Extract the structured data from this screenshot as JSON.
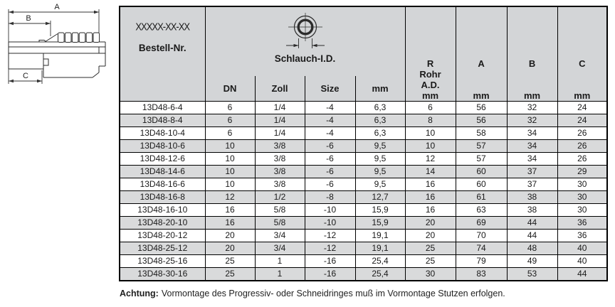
{
  "drawing": {
    "dim_a": "A",
    "dim_b": "B",
    "dim_c": "C"
  },
  "table": {
    "part_code_placeholder": "XXXXX-XX-XX",
    "col_order": "Bestell-Nr.",
    "col_hose_group": "Schlauch-I.D.",
    "sub_cols": {
      "dn": "DN",
      "zoll": "Zoll",
      "size": "Size",
      "mm": "mm"
    },
    "col_r": {
      "l1": "R",
      "l2": "Rohr",
      "l3": "A.D.",
      "unit": "mm"
    },
    "col_a": {
      "label": "A",
      "unit": "mm"
    },
    "col_b": {
      "label": "B",
      "unit": "mm"
    },
    "col_c": {
      "label": "C",
      "unit": "mm"
    },
    "rows": [
      [
        "13D48-6-4",
        "6",
        "1/4",
        "-4",
        "6,3",
        "6",
        "56",
        "32",
        "24"
      ],
      [
        "13D48-8-4",
        "6",
        "1/4",
        "-4",
        "6,3",
        "8",
        "56",
        "32",
        "24"
      ],
      [
        "13D48-10-4",
        "6",
        "1/4",
        "-4",
        "6,3",
        "10",
        "58",
        "34",
        "26"
      ],
      [
        "13D48-10-6",
        "10",
        "3/8",
        "-6",
        "9,5",
        "10",
        "57",
        "34",
        "26"
      ],
      [
        "13D48-12-6",
        "10",
        "3/8",
        "-6",
        "9,5",
        "12",
        "57",
        "34",
        "26"
      ],
      [
        "13D48-14-6",
        "10",
        "3/8",
        "-6",
        "9,5",
        "14",
        "60",
        "37",
        "29"
      ],
      [
        "13D48-16-6",
        "10",
        "3/8",
        "-6",
        "9,5",
        "16",
        "60",
        "37",
        "30"
      ],
      [
        "13D48-16-8",
        "12",
        "1/2",
        "-8",
        "12,7",
        "16",
        "61",
        "38",
        "30"
      ],
      [
        "13D48-16-10",
        "16",
        "5/8",
        "-10",
        "15,9",
        "16",
        "63",
        "38",
        "30"
      ],
      [
        "13D48-20-10",
        "16",
        "5/8",
        "-10",
        "15,9",
        "20",
        "69",
        "44",
        "36"
      ],
      [
        "13D48-20-12",
        "20",
        "3/4",
        "-12",
        "19,1",
        "20",
        "70",
        "44",
        "36"
      ],
      [
        "13D48-25-12",
        "20",
        "3/4",
        "-12",
        "19,1",
        "25",
        "74",
        "48",
        "40"
      ],
      [
        "13D48-25-16",
        "25",
        "1",
        "-16",
        "25,4",
        "25",
        "79",
        "49",
        "40"
      ],
      [
        "13D48-30-16",
        "25",
        "1",
        "-16",
        "25,4",
        "30",
        "83",
        "53",
        "44"
      ]
    ]
  },
  "footer": {
    "label": "Achtung:",
    "text": "Vormontage des Progressiv- oder Schneidringes muß im Vormontage Stutzen erfolgen."
  },
  "colors": {
    "header_bg": "#d3d5d7",
    "row_alt_bg": "#d9dadb",
    "border": "#000000",
    "text": "#1a1a1a"
  }
}
